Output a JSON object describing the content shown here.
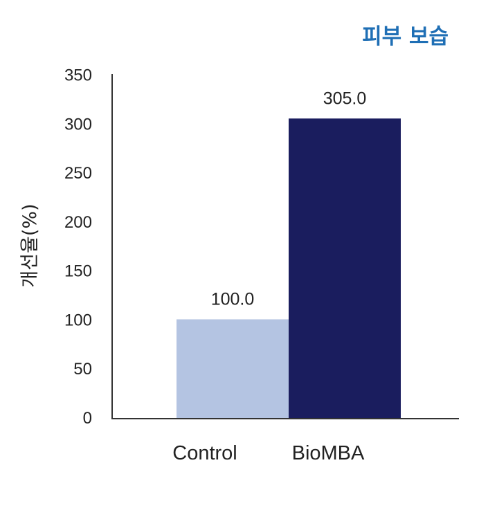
{
  "chart_data": {
    "type": "bar",
    "title": "피부 보습",
    "ylabel": "개선율(%)",
    "xlabel": "",
    "categories": [
      "Control",
      "BioMBA"
    ],
    "values": [
      100.0,
      305.0
    ],
    "value_labels": [
      "100.0",
      "305.0"
    ],
    "colors": [
      "#b4c4e2",
      "#1a1d5e"
    ],
    "ylim": [
      0,
      350
    ],
    "yticks": [
      "0",
      "50",
      "100",
      "150",
      "200",
      "250",
      "300",
      "350"
    ],
    "grid": false,
    "legend": "none"
  }
}
